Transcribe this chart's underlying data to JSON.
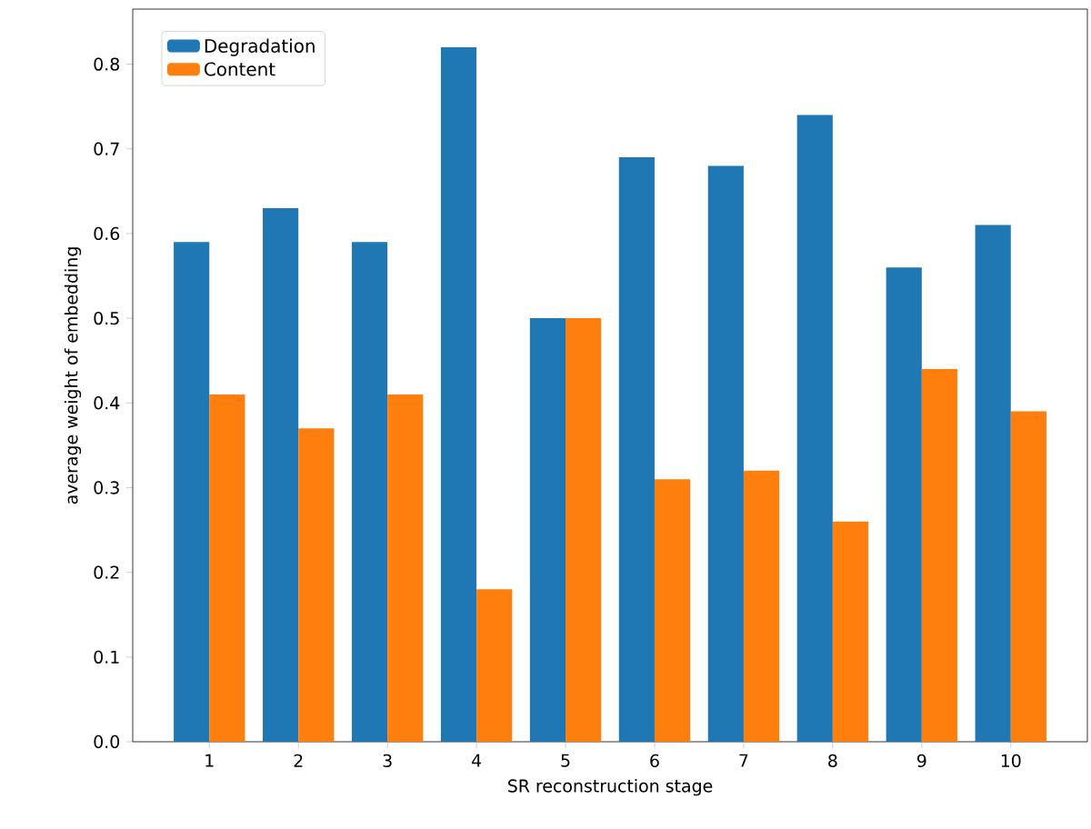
{
  "chart_data": {
    "type": "bar",
    "xlabel": "SR reconstruction stage",
    "ylabel": "average weight of embedding",
    "categories": [
      "1",
      "2",
      "3",
      "4",
      "5",
      "6",
      "7",
      "8",
      "9",
      "10"
    ],
    "series": [
      {
        "name": "Degradation",
        "color": "#1f77b4",
        "values": [
          0.59,
          0.63,
          0.59,
          0.82,
          0.5,
          0.69,
          0.68,
          0.74,
          0.56,
          0.61
        ]
      },
      {
        "name": "Content",
        "color": "#ff7f0e",
        "values": [
          0.41,
          0.37,
          0.41,
          0.18,
          0.5,
          0.31,
          0.32,
          0.26,
          0.44,
          0.39
        ]
      }
    ],
    "ylim": [
      0,
      0.865
    ],
    "yticks": [
      {
        "value": 0,
        "label": "0.0"
      },
      0.1,
      0.2,
      0.3,
      0.4,
      0.5,
      0.6,
      0.7,
      0.8
    ],
    "grid": false,
    "legend": "top left"
  }
}
